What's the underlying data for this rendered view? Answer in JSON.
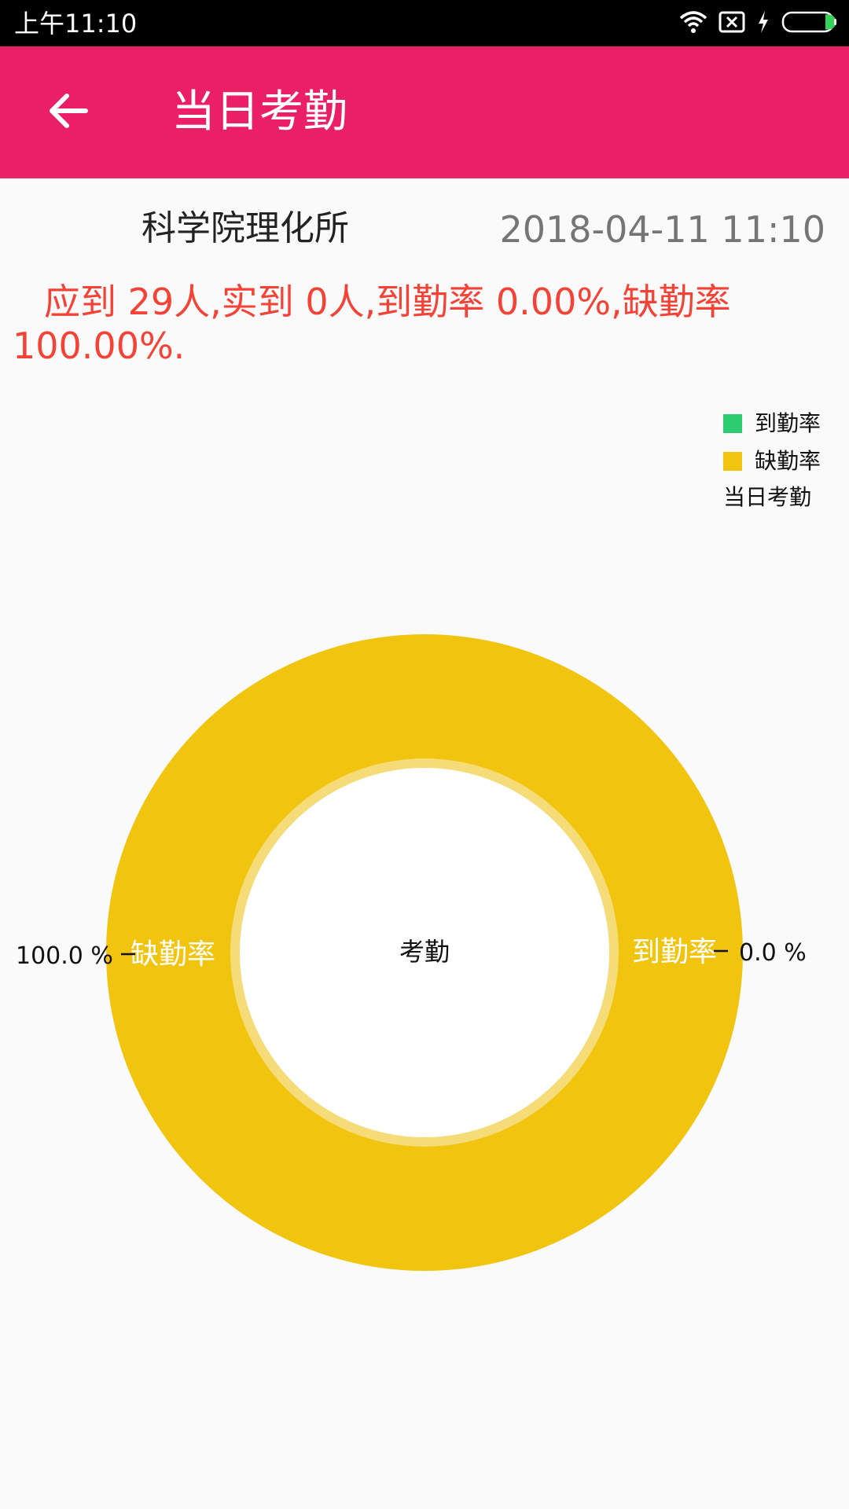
{
  "status_bar": {
    "time": "上午11:10"
  },
  "app_bar": {
    "title": "当日考勤"
  },
  "header": {
    "org_name": "科学院理化所",
    "datetime": "2018-04-11 11:10"
  },
  "summary": "应到 29人,实到 0人,到勤率 0.00%,缺勤率 100.00%.",
  "colors": {
    "app_bar": "#ea1f65",
    "attendance": "#2ecc71",
    "absence": "#f1c40f",
    "summary_text": "#f44336"
  },
  "chart_data": {
    "type": "pie",
    "title": "当日考勤",
    "center_text": "考勤",
    "slices": [
      {
        "label": "到勤率",
        "value": 0.0,
        "value_label": "0.0 %",
        "color": "#2ecc71"
      },
      {
        "label": "缺勤率",
        "value": 100.0,
        "value_label": "100.0 %",
        "color": "#f1c40f"
      }
    ],
    "legend": {
      "position": "top-right",
      "items": [
        "到勤率",
        "缺勤率"
      ],
      "title": "当日考勤"
    }
  }
}
